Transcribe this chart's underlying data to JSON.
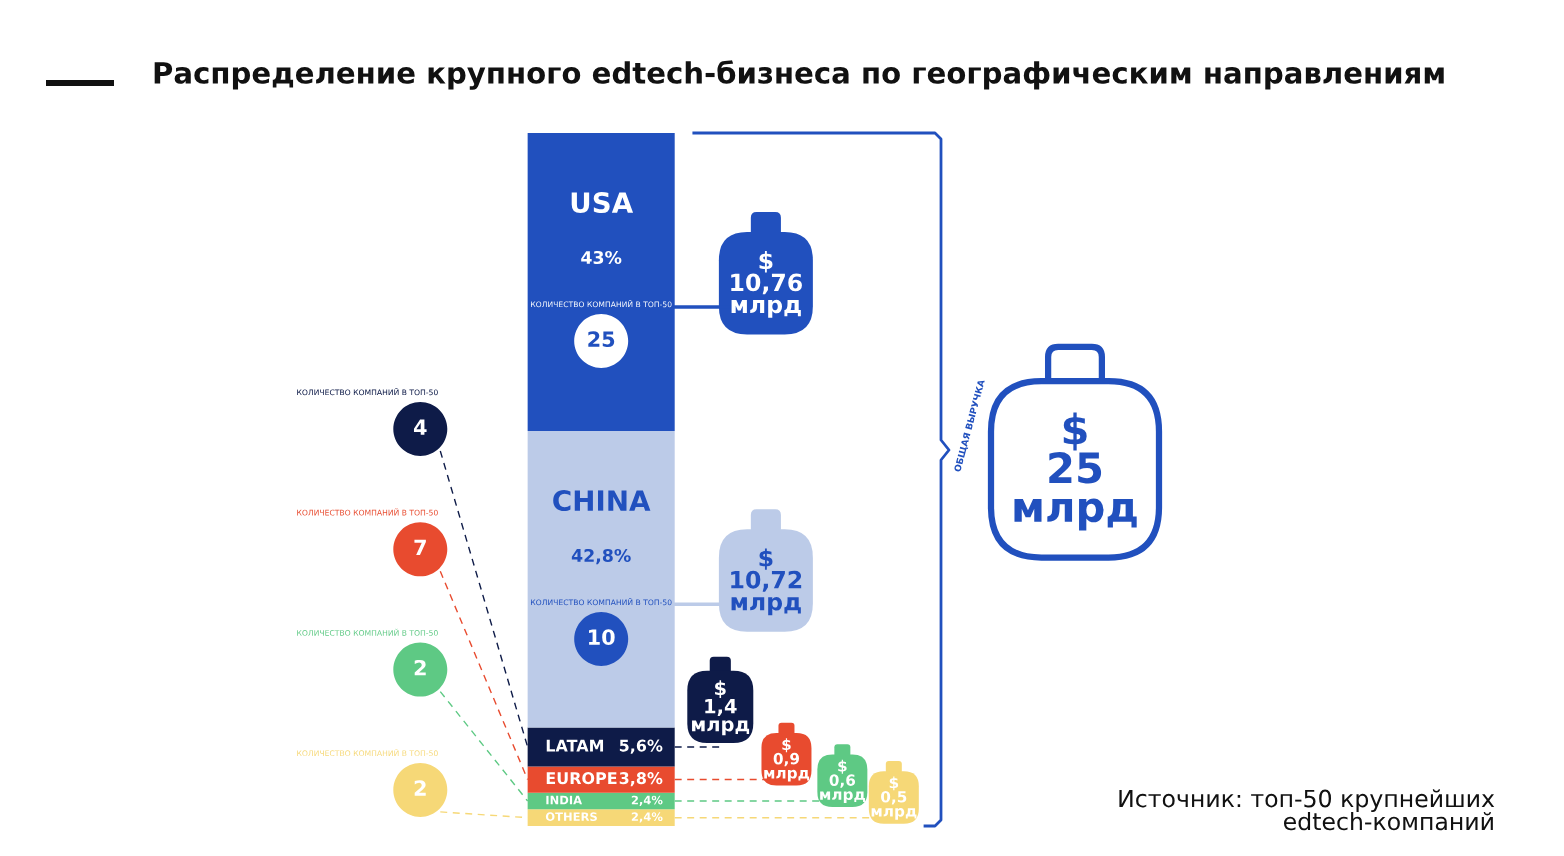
{
  "chart_data": {
    "type": "bar",
    "title": "Распределение крупного edtech-бизнеса по географическим направлениям",
    "categories": [
      null
    ],
    "stacked": true,
    "ylim": [
      0,
      100
    ],
    "series": [
      {
        "name": "OTHERS",
        "color": "#f6d877",
        "values": [
          2.4
        ],
        "value_labels": [
          "2,4%"
        ]
      },
      {
        "name": "INDIA",
        "color": "#5ec984",
        "values": [
          2.4
        ],
        "value_labels": [
          "2,4%"
        ]
      },
      {
        "name": "EUROPE",
        "color": "#e84b2f",
        "values": [
          3.8
        ],
        "value_labels": [
          "3,8%"
        ]
      },
      {
        "name": "LATAM",
        "color": "#0e1b48",
        "values": [
          5.6
        ],
        "value_labels": [
          "5,6%"
        ]
      },
      {
        "name": "CHINA",
        "color": "#bccbe8",
        "values": [
          42.8
        ],
        "value_labels": [
          "42,8%"
        ]
      },
      {
        "name": "USA",
        "color": "#2150be",
        "values": [
          43
        ],
        "value_labels": [
          "43%"
        ]
      }
    ],
    "annotations": [
      "Источник: топ-50 крупнейших\nedtech-компаний",
      "ОБЩАЯ ВЫРУЧКА",
      "$\n25\nмлрд",
      "$\n0,5\nмлрд",
      "КОЛИЧЕСТВО КОМПАНИЙ В ТОП-50",
      "2",
      "$\n0,6\nмлрд",
      "КОЛИЧЕСТВО КОМПАНИЙ В ТОП-50",
      "2",
      "$\n0,9\nмлрд",
      "КОЛИЧЕСТВО КОМПАНИЙ В ТОП-50",
      "7",
      "$\n1,4\nмлрд",
      "КОЛИЧЕСТВО КОМПАНИЙ В ТОП-50",
      "4",
      "$\n10,72\nмлрд",
      "КОЛИЧЕСТВО КОМПАНИЙ В ТОП-50",
      "10",
      "$\n10,76\nмлрд",
      "КОЛИЧЕСТВО КОМПАНИЙ В ТОП-50",
      "25"
    ]
  }
}
